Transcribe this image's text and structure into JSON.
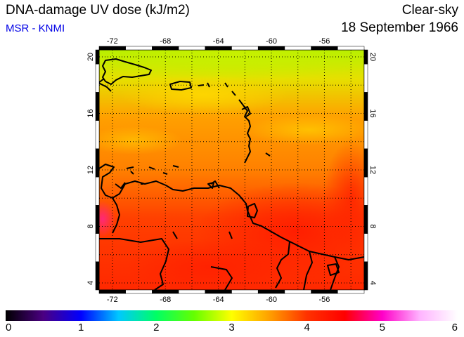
{
  "header": {
    "title": "DNA-damage UV dose (kJ/m2)",
    "subtitle": "MSR - KNMI",
    "condition": "Clear-sky",
    "date": "18 September 1966"
  },
  "map": {
    "region": "Caribbean / northern South America",
    "lon_range": [
      -73,
      -53
    ],
    "lat_range": [
      3.5,
      20.5
    ],
    "lon_ticks": [
      "-72",
      "-68",
      "-64",
      "-60",
      "-56"
    ],
    "lat_ticks": [
      "4",
      "8",
      "12",
      "16",
      "20"
    ],
    "grid": "dotted",
    "coastlines": "black"
  },
  "colorbar": {
    "min": 0,
    "max": 6,
    "labels": [
      "0",
      "1",
      "2",
      "3",
      "4",
      "5",
      "6"
    ],
    "colors": [
      "#000000",
      "#4b0082",
      "#0000ff",
      "#00c8ff",
      "#00ff64",
      "#64ff00",
      "#ffff00",
      "#ffa000",
      "#ff3200",
      "#ff0000",
      "#ff00c8",
      "#ffb4ff",
      "#ffffff"
    ]
  }
}
